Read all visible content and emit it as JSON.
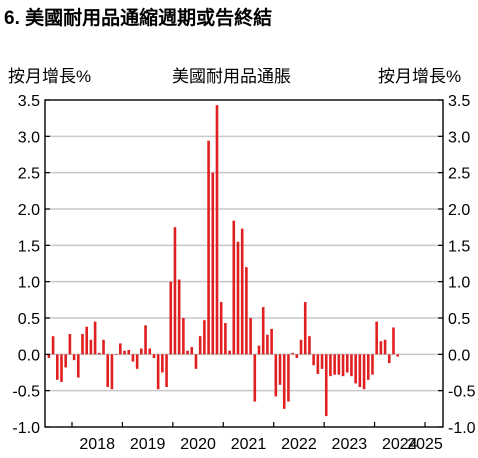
{
  "title": "6. 美國耐用品通縮週期或告終結",
  "chart_data": {
    "type": "bar",
    "title": "美國耐用品通脹",
    "ylabel_left": "按月增長%",
    "ylabel_right": "按月增長%",
    "ylim": [
      -1.0,
      3.5
    ],
    "yticks": [
      "-1.0",
      "-0.5",
      "0.0",
      "0.5",
      "1.0",
      "1.5",
      "2.0",
      "2.5",
      "3.0",
      "3.5"
    ],
    "xtick_labels": [
      "2018",
      "2019",
      "2020",
      "2021",
      "2022",
      "2023",
      "2024",
      "2025"
    ],
    "start": "2017-07",
    "grid": "horizontal",
    "bar_color": "#e02020",
    "series": [
      {
        "values": [
          -0.05,
          0.25,
          -0.35,
          -0.38,
          -0.18,
          0.28,
          -0.08,
          -0.32,
          0.28,
          0.38,
          0.2,
          0.45,
          0.02,
          0.2,
          -0.45,
          -0.48,
          0.0,
          0.15,
          0.05,
          0.06,
          -0.1,
          -0.2,
          0.08,
          0.4,
          0.08,
          -0.05,
          -0.48,
          -0.25,
          -0.45,
          1.0,
          1.75,
          1.03,
          0.5,
          0.05,
          0.1,
          -0.2,
          0.25,
          0.47,
          2.94,
          2.5,
          3.43,
          0.72,
          0.43,
          0.05,
          1.84,
          1.55,
          1.73,
          1.2,
          0.5,
          -0.65,
          0.12,
          0.65,
          0.27,
          0.35,
          -0.58,
          -0.42,
          -0.75,
          -0.65,
          0.02,
          -0.05,
          0.2,
          0.72,
          0.25,
          -0.15,
          -0.27,
          -0.2,
          -0.85,
          -0.3,
          -0.28,
          -0.28,
          -0.3,
          -0.25,
          -0.3,
          -0.4,
          -0.45,
          -0.48,
          -0.35,
          -0.28,
          0.45,
          0.18,
          0.2,
          -0.12,
          0.37,
          -0.03
        ]
      }
    ]
  }
}
